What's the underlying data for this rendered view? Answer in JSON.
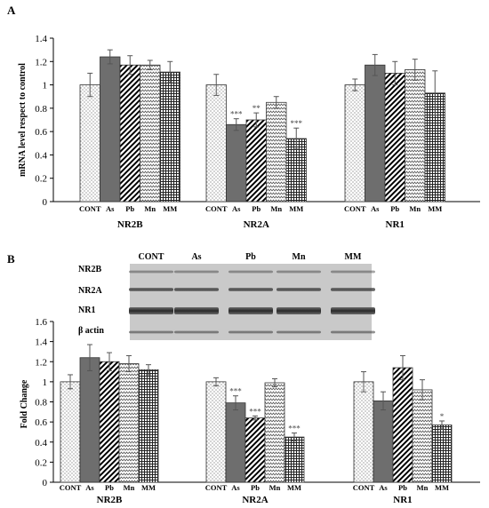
{
  "colors": {
    "CONT": "#ffffff",
    "As": "#6e6e6e",
    "Pb": "#ffffff",
    "Mn": "#ffffff",
    "MM": "#ffffff",
    "sig": "#555555"
  },
  "patterns": {
    "CONT": "dots",
    "As": "solid",
    "Pb": "diagonal",
    "Mn": "zigzag",
    "MM": "grid"
  },
  "chart_data": [
    {
      "type": "bar",
      "panel": "A",
      "ylabel": "mRNA level respect to control",
      "ylim": [
        0,
        1.4
      ],
      "yticks": [
        "0",
        "0.2",
        "0.4",
        "0.6",
        "0.8",
        "1",
        "1.2",
        "1.4"
      ],
      "groups": [
        "NR2B",
        "NR2A",
        "NR1"
      ],
      "categories": [
        "CONT",
        "As",
        "Pb",
        "Mn",
        "MM"
      ],
      "values": [
        [
          1.0,
          1.24,
          1.17,
          1.17,
          1.11
        ],
        [
          1.0,
          0.66,
          0.7,
          0.85,
          0.54
        ],
        [
          1.0,
          1.17,
          1.1,
          1.13,
          0.93
        ]
      ],
      "errors": [
        [
          0.1,
          0.06,
          0.08,
          0.04,
          0.09
        ],
        [
          0.09,
          0.05,
          0.06,
          0.05,
          0.09
        ],
        [
          0.05,
          0.09,
          0.1,
          0.09,
          0.19
        ]
      ],
      "significance": [
        [
          "",
          "",
          "",
          "",
          ""
        ],
        [
          "",
          "***",
          "**",
          "",
          "***"
        ],
        [
          "",
          "",
          "",
          "",
          ""
        ]
      ]
    },
    {
      "type": "bar",
      "panel": "B",
      "ylabel": "Fold Change",
      "ylim": [
        0,
        1.6
      ],
      "yticks": [
        "0",
        "0.2",
        "0.4",
        "0.6",
        "0.8",
        "1",
        "1.2",
        "1.4",
        "1.6"
      ],
      "groups": [
        "NR2B",
        "NR2A",
        "NR1"
      ],
      "categories": [
        "CONT",
        "As",
        "Pb",
        "Mn",
        "MM"
      ],
      "values": [
        [
          1.0,
          1.24,
          1.2,
          1.18,
          1.12
        ],
        [
          1.0,
          0.79,
          0.64,
          0.99,
          0.45
        ],
        [
          1.0,
          0.81,
          1.14,
          0.92,
          0.57
        ]
      ],
      "errors": [
        [
          0.07,
          0.13,
          0.09,
          0.08,
          0.05
        ],
        [
          0.04,
          0.07,
          0.02,
          0.04,
          0.04
        ],
        [
          0.1,
          0.09,
          0.12,
          0.1,
          0.04
        ]
      ],
      "significance": [
        [
          "",
          "",
          "",
          "",
          ""
        ],
        [
          "",
          "***",
          "***",
          "",
          "***"
        ],
        [
          "",
          "",
          "",
          "",
          "*"
        ]
      ]
    }
  ],
  "blot": {
    "lanes": [
      "CONT",
      "As",
      "Pb",
      "Mn",
      "MM"
    ],
    "bands": [
      "NR2B",
      "NR2A",
      "NR1",
      "β actin"
    ]
  }
}
